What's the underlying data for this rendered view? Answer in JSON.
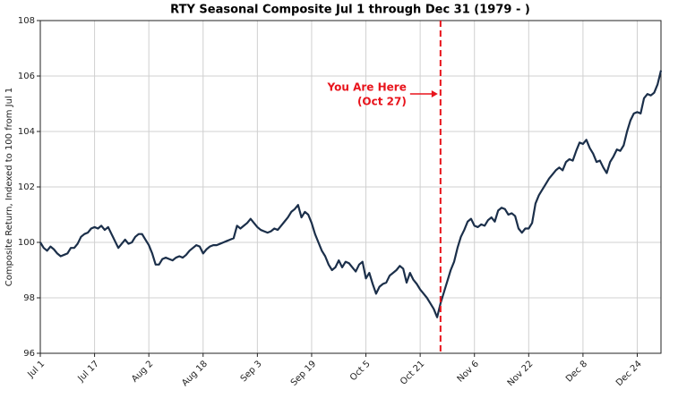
{
  "chart_data": {
    "type": "line",
    "title": "RTY Seasonal Composite Jul 1 through Dec 31 (1979 - )",
    "ylabel": "Composite Return, Indexed to 100 from Jul 1",
    "color": "#1b2f4a",
    "grid": true,
    "ylim": [
      96,
      108
    ],
    "yticks": [
      96,
      98,
      100,
      102,
      104,
      106,
      108
    ],
    "vline": {
      "x": 118,
      "color": "#e8141c"
    },
    "annotation": {
      "lines": [
        "You Are Here",
        "(Oct 27)"
      ],
      "color": "#e8141c"
    },
    "categories": [
      "Jul 1",
      null,
      null,
      null,
      null,
      null,
      null,
      null,
      null,
      null,
      null,
      null,
      null,
      null,
      null,
      null,
      "Jul 17",
      null,
      null,
      null,
      null,
      null,
      null,
      null,
      null,
      null,
      null,
      null,
      null,
      null,
      null,
      null,
      "Aug 2",
      null,
      null,
      null,
      null,
      null,
      null,
      null,
      null,
      null,
      null,
      null,
      null,
      null,
      null,
      null,
      "Aug 18",
      null,
      null,
      null,
      null,
      null,
      null,
      null,
      null,
      null,
      null,
      null,
      null,
      null,
      null,
      null,
      "Sep 3",
      null,
      null,
      null,
      null,
      null,
      null,
      null,
      null,
      null,
      null,
      null,
      null,
      null,
      null,
      null,
      "Sep 19",
      null,
      null,
      null,
      null,
      null,
      null,
      null,
      null,
      null,
      null,
      null,
      null,
      null,
      null,
      null,
      "Oct 5",
      null,
      null,
      null,
      null,
      null,
      null,
      null,
      null,
      null,
      null,
      null,
      null,
      null,
      null,
      null,
      "Oct 21",
      null,
      null,
      null,
      null,
      null,
      null,
      null,
      null,
      null,
      null,
      null,
      null,
      null,
      null,
      null,
      "Nov 6",
      null,
      null,
      null,
      null,
      null,
      null,
      null,
      null,
      null,
      null,
      null,
      null,
      null,
      null,
      null,
      "Nov 22",
      null,
      null,
      null,
      null,
      null,
      null,
      null,
      null,
      null,
      null,
      null,
      null,
      null,
      null,
      null,
      "Dec 8",
      null,
      null,
      null,
      null,
      null,
      null,
      null,
      null,
      null,
      null,
      null,
      null,
      null,
      null,
      null,
      "Dec 24",
      null,
      null,
      null,
      null,
      null,
      null,
      null
    ],
    "values": [
      100.0,
      99.8,
      99.7,
      99.85,
      99.75,
      99.6,
      99.5,
      99.55,
      99.6,
      99.8,
      99.8,
      99.95,
      100.2,
      100.3,
      100.35,
      100.5,
      100.55,
      100.5,
      100.6,
      100.45,
      100.55,
      100.3,
      100.05,
      99.8,
      99.95,
      100.1,
      99.95,
      100.0,
      100.2,
      100.3,
      100.3,
      100.1,
      99.9,
      99.6,
      99.2,
      99.2,
      99.4,
      99.45,
      99.4,
      99.35,
      99.45,
      99.5,
      99.45,
      99.55,
      99.7,
      99.8,
      99.9,
      99.85,
      99.6,
      99.75,
      99.85,
      99.9,
      99.9,
      99.95,
      100.0,
      100.05,
      100.1,
      100.15,
      100.6,
      100.5,
      100.6,
      100.7,
      100.85,
      100.7,
      100.55,
      100.45,
      100.4,
      100.35,
      100.4,
      100.5,
      100.45,
      100.6,
      100.75,
      100.9,
      101.1,
      101.2,
      101.35,
      100.9,
      101.1,
      101.0,
      100.7,
      100.3,
      100.0,
      99.7,
      99.5,
      99.2,
      99.0,
      99.1,
      99.35,
      99.1,
      99.3,
      99.25,
      99.1,
      98.95,
      99.2,
      99.3,
      98.7,
      98.9,
      98.5,
      98.15,
      98.4,
      98.5,
      98.55,
      98.8,
      98.9,
      99.0,
      99.15,
      99.05,
      98.55,
      98.9,
      98.65,
      98.5,
      98.3,
      98.15,
      98.0,
      97.8,
      97.6,
      97.3,
      97.8,
      98.2,
      98.6,
      99.0,
      99.3,
      99.8,
      100.2,
      100.45,
      100.75,
      100.85,
      100.6,
      100.55,
      100.65,
      100.6,
      100.8,
      100.9,
      100.75,
      101.15,
      101.25,
      101.2,
      101.0,
      101.05,
      100.95,
      100.5,
      100.35,
      100.5,
      100.5,
      100.7,
      101.4,
      101.7,
      101.9,
      102.1,
      102.3,
      102.45,
      102.6,
      102.7,
      102.6,
      102.9,
      103.0,
      102.95,
      103.3,
      103.6,
      103.55,
      103.7,
      103.4,
      103.2,
      102.9,
      102.95,
      102.7,
      102.5,
      102.9,
      103.1,
      103.35,
      103.3,
      103.5,
      104.0,
      104.4,
      104.65,
      104.7,
      104.65,
      105.2,
      105.35,
      105.3,
      105.4,
      105.7,
      106.2
    ]
  }
}
